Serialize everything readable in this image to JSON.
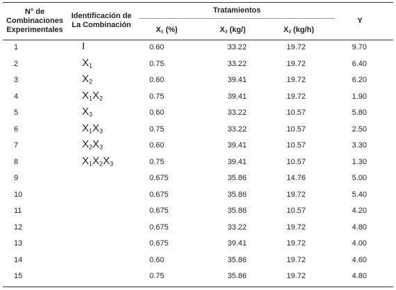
{
  "table": {
    "header": {
      "col_number": "N° de Combinaciones Experimentales",
      "col_id": "Identificación de La Combinación",
      "group": "Tratamientos",
      "treatments": [
        "X1 (%)",
        "X2 (kg/)",
        "X3 (kg/h)"
      ],
      "col_y": "Y"
    },
    "rows": [
      [
        "1",
        "I",
        "0.60",
        "33.22",
        "19.72",
        "9.70"
      ],
      [
        "2",
        "X1",
        "0.75",
        "33.22",
        "19.72",
        "6.40"
      ],
      [
        "3",
        "X2",
        "0.60",
        "39.41",
        "19.72",
        "6.20"
      ],
      [
        "4",
        "X1X2",
        "0.75",
        "39.41",
        "19.72",
        "1.90"
      ],
      [
        "5",
        "X3",
        "0.60",
        "33.22",
        "10.57",
        "5.80"
      ],
      [
        "6",
        "X1X3",
        "0.75",
        "33.22",
        "10.57",
        "2.50"
      ],
      [
        "7",
        "X2X3",
        "0.60",
        "39.41",
        "10.57",
        "3.30"
      ],
      [
        "8",
        "X1X2X3",
        "0.75",
        "39.41",
        "10.57",
        "1.30"
      ],
      [
        "9",
        null,
        "0.675",
        "35.86",
        "14.76",
        "5.00"
      ],
      [
        "10",
        null,
        "0.675",
        "35.86",
        "19.72",
        "5.40"
      ],
      [
        "11",
        null,
        "0.675",
        "35.86",
        "10.57",
        "4.20"
      ],
      [
        "12",
        null,
        "0.675",
        "33.22",
        "19.72",
        "4.80"
      ],
      [
        "13",
        null,
        "0.675",
        "39.41",
        "19.72",
        "4.00"
      ],
      [
        "14",
        null,
        "0.60",
        "35.86",
        "19.72",
        "4.60"
      ],
      [
        "15",
        null,
        "0.75",
        "35.86",
        "19.72",
        "4.80"
      ]
    ]
  }
}
